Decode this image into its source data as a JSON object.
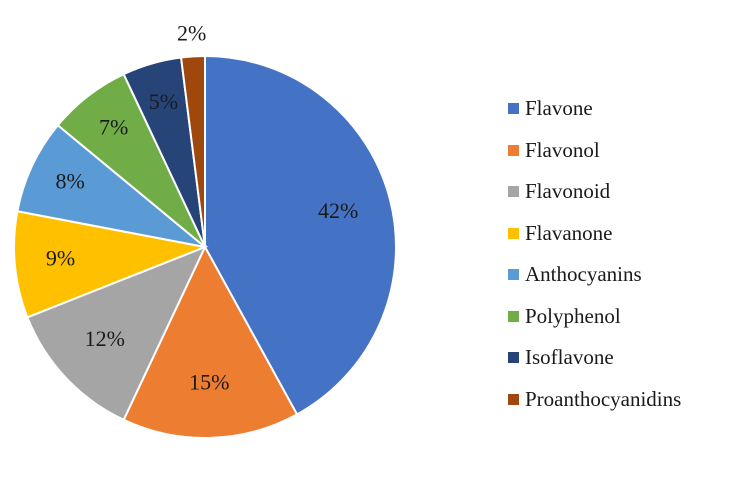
{
  "chart_data": {
    "type": "pie",
    "categories": [
      "Flavone",
      "Flavonol",
      "Flavonoid",
      "Flavanone",
      "Anthocyanins",
      "Polyphenol",
      "Isoflavone",
      "Proanthocyanidins"
    ],
    "values": [
      42,
      15,
      12,
      9,
      8,
      7,
      5,
      2
    ],
    "labels": [
      "42%",
      "15%",
      "12%",
      "9%",
      "8%",
      "7%",
      "5%",
      "2%"
    ],
    "colors": [
      "#4472C4",
      "#ED7D31",
      "#A5A5A5",
      "#FFC000",
      "#5B9BD5",
      "#70AD47",
      "#264478",
      "#9E480E"
    ],
    "start_angle_deg": 0,
    "direction": "clockwise",
    "legend_position": "right"
  }
}
